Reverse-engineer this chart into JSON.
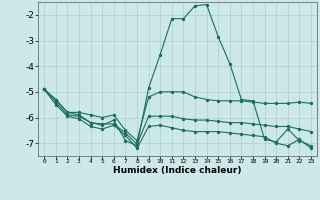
{
  "xlabel": "Humidex (Indice chaleur)",
  "background_color": "#cce8e8",
  "grid_color": "#b0cccc",
  "line_color": "#1a6e62",
  "xlim": [
    -0.5,
    23.5
  ],
  "ylim": [
    -7.5,
    -1.5
  ],
  "yticks": [
    -7,
    -6,
    -5,
    -4,
    -3,
    -2
  ],
  "xtick_labels": [
    "0",
    "1",
    "2",
    "3",
    "4",
    "5",
    "6",
    "7",
    "8",
    "9",
    "10",
    "11",
    "12",
    "13",
    "14",
    "15",
    "16",
    "17",
    "18",
    "19",
    "20",
    "21",
    "22",
    "23"
  ],
  "xtick_positions": [
    0,
    1,
    2,
    3,
    4,
    5,
    6,
    7,
    8,
    9,
    10,
    11,
    12,
    13,
    14,
    15,
    16,
    17,
    18,
    19,
    20,
    21,
    22,
    23
  ],
  "lines": [
    {
      "x": [
        0,
        1,
        2,
        3,
        4,
        5,
        6,
        7,
        8,
        9,
        10,
        11,
        12,
        13,
        14,
        15,
        16,
        17,
        18,
        19,
        20,
        21,
        22,
        23
      ],
      "y": [
        -4.9,
        -5.3,
        -5.8,
        -5.9,
        -6.2,
        -6.3,
        -6.1,
        -6.9,
        -7.1,
        -4.85,
        -3.55,
        -2.15,
        -2.15,
        -1.65,
        -1.6,
        -2.85,
        -3.9,
        -5.3,
        -5.35,
        -6.85,
        -6.95,
        -6.45,
        -6.9,
        -7.1
      ]
    },
    {
      "x": [
        0,
        1,
        2,
        3,
        4,
        5,
        6,
        7,
        8,
        9,
        10,
        11,
        12,
        13,
        14,
        15,
        16,
        17,
        18,
        19,
        20,
        21,
        22,
        23
      ],
      "y": [
        -4.9,
        -5.3,
        -5.8,
        -5.8,
        -5.9,
        -6.0,
        -5.9,
        -6.5,
        -6.9,
        -5.2,
        -5.0,
        -5.0,
        -5.0,
        -5.2,
        -5.3,
        -5.35,
        -5.35,
        -5.35,
        -5.4,
        -5.45,
        -5.45,
        -5.45,
        -5.4,
        -5.45
      ]
    },
    {
      "x": [
        0,
        1,
        2,
        3,
        4,
        5,
        6,
        7,
        8,
        9,
        10,
        11,
        12,
        13,
        14,
        15,
        16,
        17,
        18,
        19,
        20,
        21,
        22,
        23
      ],
      "y": [
        -4.9,
        -5.4,
        -5.9,
        -5.95,
        -6.2,
        -6.25,
        -6.25,
        -6.6,
        -7.05,
        -5.95,
        -5.95,
        -5.95,
        -6.05,
        -6.1,
        -6.1,
        -6.15,
        -6.2,
        -6.2,
        -6.25,
        -6.3,
        -6.35,
        -6.35,
        -6.45,
        -6.55
      ]
    },
    {
      "x": [
        0,
        1,
        2,
        3,
        4,
        5,
        6,
        7,
        8,
        9,
        10,
        11,
        12,
        13,
        14,
        15,
        16,
        17,
        18,
        19,
        20,
        21,
        22,
        23
      ],
      "y": [
        -4.9,
        -5.5,
        -5.95,
        -6.05,
        -6.35,
        -6.45,
        -6.3,
        -6.7,
        -7.2,
        -6.35,
        -6.3,
        -6.4,
        -6.5,
        -6.55,
        -6.55,
        -6.55,
        -6.6,
        -6.65,
        -6.7,
        -6.75,
        -7.0,
        -7.1,
        -6.85,
        -7.2
      ]
    }
  ]
}
